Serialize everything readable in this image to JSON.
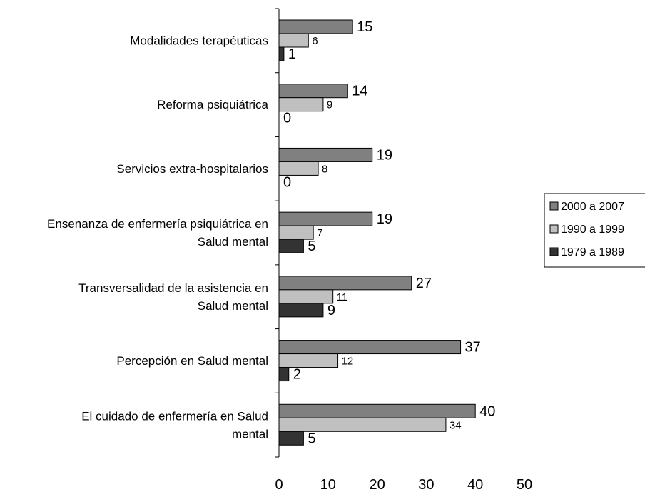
{
  "chart_data": {
    "type": "bar",
    "orientation": "horizontal",
    "categories": [
      [
        "Modalidades terapéuticas"
      ],
      [
        "Reforma psiquiátrica"
      ],
      [
        "Servicios extra-hospitalarios"
      ],
      [
        "Ensenanza de enfermería psiquiátrica en",
        "Salud mental"
      ],
      [
        "Transversalidad de la asistencia en",
        "Salud mental"
      ],
      [
        "Percepción en Salud mental"
      ],
      [
        "El cuidado de enfermería en Salud",
        "mental"
      ]
    ],
    "series": [
      {
        "name": "2000 a 2007",
        "color": "#808080",
        "values": [
          15,
          14,
          19,
          19,
          27,
          37,
          40
        ]
      },
      {
        "name": "1990 a 1999",
        "color": "#c0c0c0",
        "values": [
          6,
          9,
          8,
          7,
          11,
          12,
          34
        ]
      },
      {
        "name": "1979 a 1989",
        "color": "#333333",
        "values": [
          1,
          0,
          0,
          5,
          9,
          2,
          5
        ]
      }
    ],
    "xlim": [
      0,
      50
    ],
    "xticks": [
      0,
      10,
      20,
      30,
      40,
      50
    ],
    "title": "",
    "xlabel": "",
    "ylabel": "",
    "grid": false,
    "legend_position": "right"
  }
}
